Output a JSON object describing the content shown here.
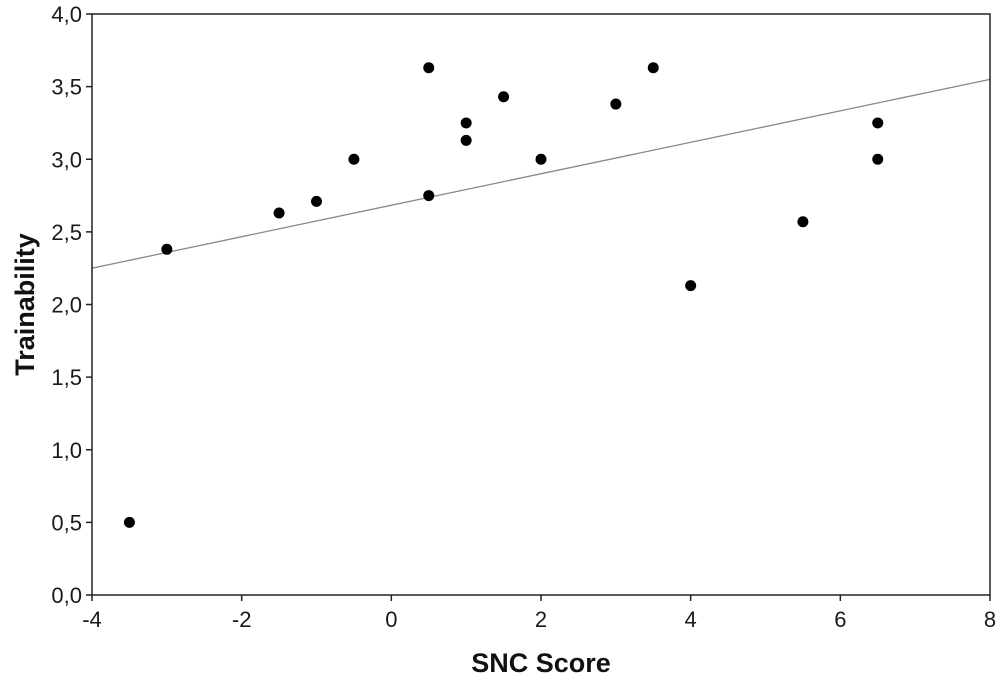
{
  "chart_data": {
    "type": "scatter",
    "title": "",
    "xlabel": "SNC Score",
    "ylabel": "Trainability",
    "xlim": [
      -4,
      8
    ],
    "ylim": [
      0,
      4
    ],
    "x_ticks": [
      -4,
      -2,
      0,
      2,
      4,
      6,
      8
    ],
    "x_tick_labels": [
      "-4",
      "-2",
      "0",
      "2",
      "4",
      "6",
      "8"
    ],
    "y_ticks": [
      0,
      0.5,
      1,
      1.5,
      2,
      2.5,
      3,
      3.5,
      4
    ],
    "y_tick_labels": [
      "0,0",
      "0,5",
      "1,0",
      "1,5",
      "2,0",
      "2,5",
      "3,0",
      "3,5",
      "4,0"
    ],
    "grid": false,
    "points": [
      {
        "x": -3.5,
        "y": 0.5
      },
      {
        "x": -3.0,
        "y": 2.38
      },
      {
        "x": -1.5,
        "y": 2.63
      },
      {
        "x": -1.0,
        "y": 2.71
      },
      {
        "x": -0.5,
        "y": 3.0
      },
      {
        "x": 0.5,
        "y": 3.63
      },
      {
        "x": 0.5,
        "y": 2.75
      },
      {
        "x": 1.0,
        "y": 3.25
      },
      {
        "x": 1.0,
        "y": 3.13
      },
      {
        "x": 1.5,
        "y": 3.43
      },
      {
        "x": 2.0,
        "y": 3.0
      },
      {
        "x": 3.0,
        "y": 3.38
      },
      {
        "x": 3.5,
        "y": 3.63
      },
      {
        "x": 4.0,
        "y": 2.13
      },
      {
        "x": 5.5,
        "y": 2.57
      },
      {
        "x": 6.5,
        "y": 3.25
      },
      {
        "x": 6.5,
        "y": 3.0
      }
    ],
    "regression_line": {
      "x": [
        -4,
        8
      ],
      "y": [
        2.25,
        3.55
      ]
    },
    "colors": {
      "points": "#000000",
      "line": "#888888",
      "axes": "#222222"
    }
  }
}
